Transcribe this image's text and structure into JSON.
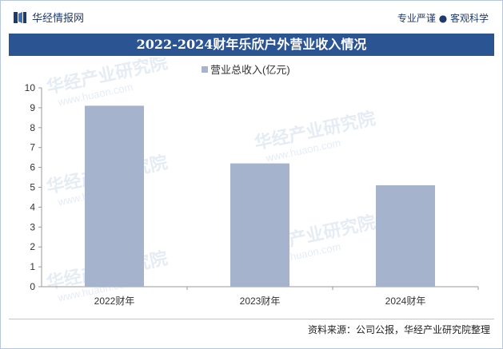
{
  "header": {
    "brand": "华经情报网",
    "tagline": "专业严谨 ● 客观科学"
  },
  "title": "2022-2024财年乐欣户外营业收入情况",
  "colors": {
    "bar": "#a5b3cc",
    "title_bg": "#2b5493",
    "brand": "#1f3b6b"
  },
  "chart_data": {
    "type": "bar",
    "categories": [
      "2022财年",
      "2023财年",
      "2024财年"
    ],
    "series": [
      {
        "name": "营业总收入(亿元)",
        "values": [
          9.1,
          6.2,
          5.1
        ]
      }
    ],
    "ylim": [
      0,
      10
    ],
    "yticks": [
      0,
      1,
      2,
      3,
      4,
      5,
      6,
      7,
      8,
      9,
      10
    ],
    "grid": false,
    "legend": "top-center"
  },
  "watermark": {
    "text": "华经产业研究院",
    "url": "www.huaon.com"
  },
  "footer": {
    "source": "资料来源：公司公报，华经产业研究院整理"
  }
}
